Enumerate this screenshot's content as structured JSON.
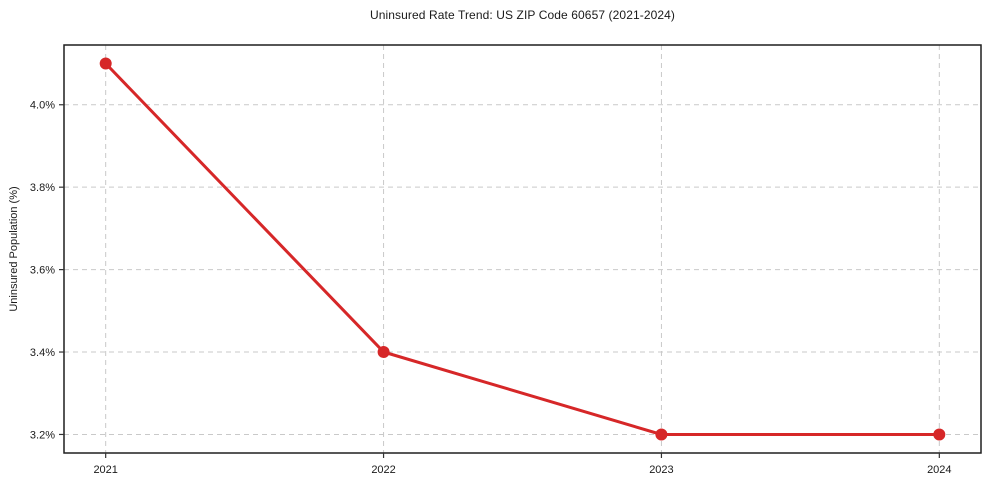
{
  "figure": {
    "background": "#ffffff"
  },
  "chart_data": {
    "type": "line",
    "title": "Uninsured Rate Trend: US ZIP Code 60657 (2021-2024)",
    "xlabel": "",
    "ylabel": "Uninsured Population (%)",
    "x": [
      2021,
      2022,
      2023,
      2024
    ],
    "series": [
      {
        "name": "Uninsured Population (%)",
        "values": [
          4.1,
          3.4,
          3.2,
          3.2
        ],
        "color": "#d62728",
        "marker": "circle",
        "line_width": 3,
        "marker_radius": 6
      }
    ],
    "xlim": [
      2020.85,
      2024.15
    ],
    "ylim": [
      3.155,
      4.145
    ],
    "xticks": {
      "values": [
        2021,
        2022,
        2023,
        2024
      ],
      "labels": [
        "2021",
        "2022",
        "2023",
        "2024"
      ]
    },
    "yticks": {
      "values": [
        3.2,
        3.4,
        3.6,
        3.8,
        4.0
      ],
      "labels": [
        "3.2%",
        "3.4%",
        "3.6%",
        "3.8%",
        "4.0%"
      ]
    },
    "grid": true,
    "grid_style": "dashed",
    "legend": "none",
    "colors": {
      "grid": "#c9c9c9",
      "spine": "#1f1f1f",
      "tick": "#333333",
      "text": "#1a1a1a",
      "plot_bg": "#ffffff"
    }
  }
}
